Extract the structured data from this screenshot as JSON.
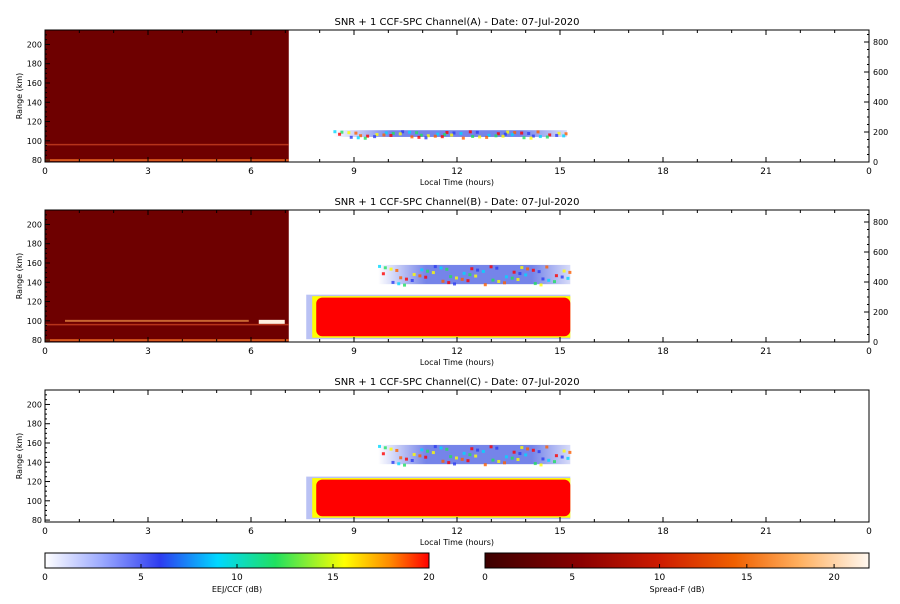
{
  "chart_data": [
    {
      "type": "heatmap",
      "title": "SNR + 1 CCF-SPC Channel(A) - Date: 07-Jul-2020",
      "xlabel": "Local Time (hours)",
      "ylabel": "Range (km)",
      "xlim": [
        0,
        24
      ],
      "ylim": [
        78,
        215
      ],
      "right_ylim": [
        0,
        880
      ],
      "xticks": [
        "0",
        "3",
        "6",
        "9",
        "12",
        "15",
        "18",
        "21",
        "0"
      ],
      "yticks": [
        80,
        100,
        120,
        140,
        160,
        180,
        200
      ],
      "right_yticks": [
        0,
        200,
        400,
        600,
        800
      ],
      "regions": [
        {
          "name": "Spread-F",
          "x": [
            0,
            7.1
          ],
          "y": [
            78,
            215
          ],
          "level_db": 3
        },
        {
          "name": "EEJ/CCF",
          "x": [
            8.4,
            15.2
          ],
          "y": [
            104,
            111
          ],
          "level_db": 3
        }
      ]
    },
    {
      "type": "heatmap",
      "title": "SNR + 1 CCF-SPC Channel(B) - Date: 07-Jul-2020",
      "xlabel": "Local Time (hours)",
      "ylabel": "Range (km)",
      "xlim": [
        0,
        24
      ],
      "ylim": [
        78,
        215
      ],
      "right_ylim": [
        0,
        880
      ],
      "xticks": [
        "0",
        "3",
        "6",
        "9",
        "12",
        "15",
        "18",
        "21",
        "0"
      ],
      "yticks": [
        80,
        100,
        120,
        140,
        160,
        180,
        200
      ],
      "right_yticks": [
        0,
        200,
        400,
        600,
        800
      ],
      "regions": [
        {
          "name": "Spread-F",
          "x": [
            0,
            7.1
          ],
          "y": [
            78,
            215
          ],
          "level_db": 3
        },
        {
          "name": "EEJ/CCF",
          "x": [
            7.9,
            15.3
          ],
          "y": [
            84,
            124
          ],
          "level_db": 20
        },
        {
          "name": "EEJ/CCF",
          "x": [
            9.7,
            15.3
          ],
          "y": [
            138,
            158
          ],
          "level_db": 8
        }
      ]
    },
    {
      "type": "heatmap",
      "title": "SNR + 1 CCF-SPC Channel(C) - Date: 07-Jul-2020",
      "xlabel": "Local Time (hours)",
      "ylabel": "Range (km)",
      "xlim": [
        0,
        24
      ],
      "ylim": [
        78,
        215
      ],
      "xticks": [
        "0",
        "3",
        "6",
        "9",
        "12",
        "15",
        "18",
        "21",
        "0"
      ],
      "yticks": [
        80,
        100,
        120,
        140,
        160,
        180,
        200
      ],
      "regions": [
        {
          "name": "EEJ/CCF",
          "x": [
            7.9,
            15.3
          ],
          "y": [
            84,
            122
          ],
          "level_db": 20
        },
        {
          "name": "EEJ/CCF",
          "x": [
            9.7,
            15.3
          ],
          "y": [
            138,
            158
          ],
          "level_db": 8
        }
      ]
    }
  ],
  "colorbars": [
    {
      "label": "EEJ/CCF (dB)",
      "ticks": [
        "0",
        "5",
        "10",
        "15",
        "20"
      ],
      "range": [
        0,
        20
      ]
    },
    {
      "label": "Spread-F (dB)",
      "ticks": [
        "0",
        "5",
        "10",
        "15",
        "20"
      ],
      "range": [
        0,
        22
      ]
    }
  ],
  "colors": {
    "spread_f_dark": "#6e0000",
    "eej_red": "#ff0000",
    "eej_blue": "#3a4fe0"
  }
}
